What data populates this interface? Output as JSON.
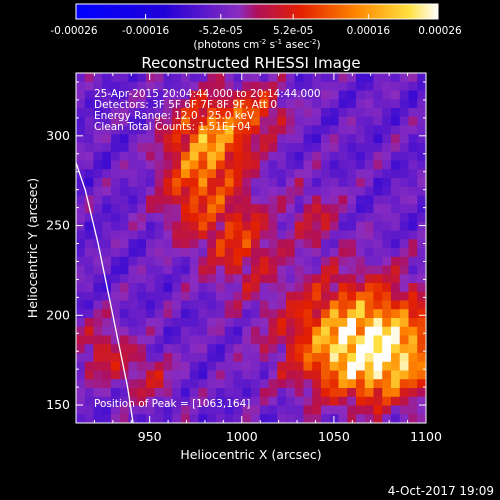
{
  "chart_data": {
    "type": "heatmap",
    "title": "Reconstructed RHESSI Image",
    "xlabel": "Heliocentric X (arcsec)",
    "ylabel": "Heliocentric Y (arcsec)",
    "xlim": [
      910,
      1100
    ],
    "ylim": [
      140,
      335
    ],
    "xticks": [
      950,
      1000,
      1050,
      1100
    ],
    "yticks": [
      150,
      200,
      250,
      300
    ],
    "colorbar": {
      "range": [
        -0.00026,
        0.00026
      ],
      "tick_labels": [
        "-0.00026",
        "-0.00016",
        "-5.2e-05",
        "5.2e-05",
        "0.00016",
        "0.00026"
      ],
      "tick_values": [
        -0.00026,
        -0.00016,
        -5.2e-05,
        5.2e-05,
        0.00016,
        0.00026
      ],
      "unit_label": "(photons cm",
      "unit_sup1": "-2",
      "unit_mid": " s",
      "unit_sup2": "-1",
      "unit_mid2": " asec",
      "unit_sup3": "-2",
      "unit_end": ")"
    },
    "annotations": {
      "time": "25-Apr-2015 20:04:44.000 to 20:14:44.000",
      "detectors": "Detectors: 3F 5F 6F 7F 8F 9F, Att 0",
      "energy": "Energy Range: 12.0 - 25.0 keV",
      "method": "Clean     Total Counts: 1.51E+04",
      "peak": "Position of Peak = [1063,164]"
    },
    "peak": [
      1063,
      164
    ],
    "limb_curve": [
      [
        910,
        285
      ],
      [
        915,
        270
      ],
      [
        922,
        240
      ],
      [
        928,
        210
      ],
      [
        933,
        185
      ],
      [
        938,
        160
      ],
      [
        941,
        140
      ]
    ],
    "sources": [
      {
        "x": 1063,
        "y": 190,
        "sx": 28,
        "sy": 22,
        "amp": 0.00026
      },
      {
        "x": 1075,
        "y": 175,
        "sx": 22,
        "sy": 16,
        "amp": 0.00022
      },
      {
        "x": 985,
        "y": 300,
        "sx": 16,
        "sy": 16,
        "amp": 0.00022
      },
      {
        "x": 975,
        "y": 270,
        "sx": 14,
        "sy": 20,
        "amp": 0.00016
      },
      {
        "x": 1000,
        "y": 240,
        "sx": 14,
        "sy": 18,
        "amp": 0.00014
      },
      {
        "x": 1010,
        "y": 315,
        "sx": 12,
        "sy": 10,
        "amp": 0.00012
      },
      {
        "x": 925,
        "y": 180,
        "sx": 10,
        "sy": 12,
        "amp": 0.00012
      },
      {
        "x": 950,
        "y": 165,
        "sx": 10,
        "sy": 10,
        "amp": 0.0001
      },
      {
        "x": 1040,
        "y": 255,
        "sx": 10,
        "sy": 12,
        "amp": 9e-05
      }
    ]
  },
  "footer": {
    "date": "4-Oct-2017 19:09"
  }
}
